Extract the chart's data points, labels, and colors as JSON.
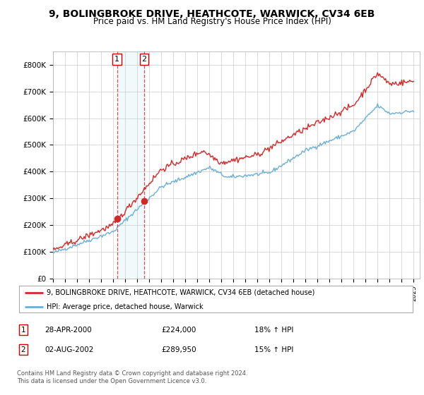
{
  "title": "9, BOLINGBROKE DRIVE, HEATHCOTE, WARWICK, CV34 6EB",
  "subtitle": "Price paid vs. HM Land Registry's House Price Index (HPI)",
  "legend_line1": "9, BOLINGBROKE DRIVE, HEATHCOTE, WARWICK, CV34 6EB (detached house)",
  "legend_line2": "HPI: Average price, detached house, Warwick",
  "transaction1_label": "1",
  "transaction1_date": "28-APR-2000",
  "transaction1_price": "£224,000",
  "transaction1_hpi": "18% ↑ HPI",
  "transaction2_label": "2",
  "transaction2_date": "02-AUG-2002",
  "transaction2_price": "£289,950",
  "transaction2_hpi": "15% ↑ HPI",
  "footer": "Contains HM Land Registry data © Crown copyright and database right 2024.\nThis data is licensed under the Open Government Licence v3.0.",
  "ylim": [
    0,
    850000
  ],
  "yticks": [
    0,
    100000,
    200000,
    300000,
    400000,
    500000,
    600000,
    700000,
    800000
  ],
  "ytick_labels": [
    "£0",
    "£100K",
    "£200K",
    "£300K",
    "£400K",
    "£500K",
    "£600K",
    "£700K",
    "£800K"
  ],
  "hpi_color": "#6baed6",
  "price_color": "#d62728",
  "marker1_x": 2000.33,
  "marker1_y": 224000,
  "marker2_x": 2002.58,
  "marker2_y": 289950,
  "shade_x1": 2000.33,
  "shade_x2": 2002.58,
  "xlim_left": 1995,
  "xlim_right": 2025.5
}
